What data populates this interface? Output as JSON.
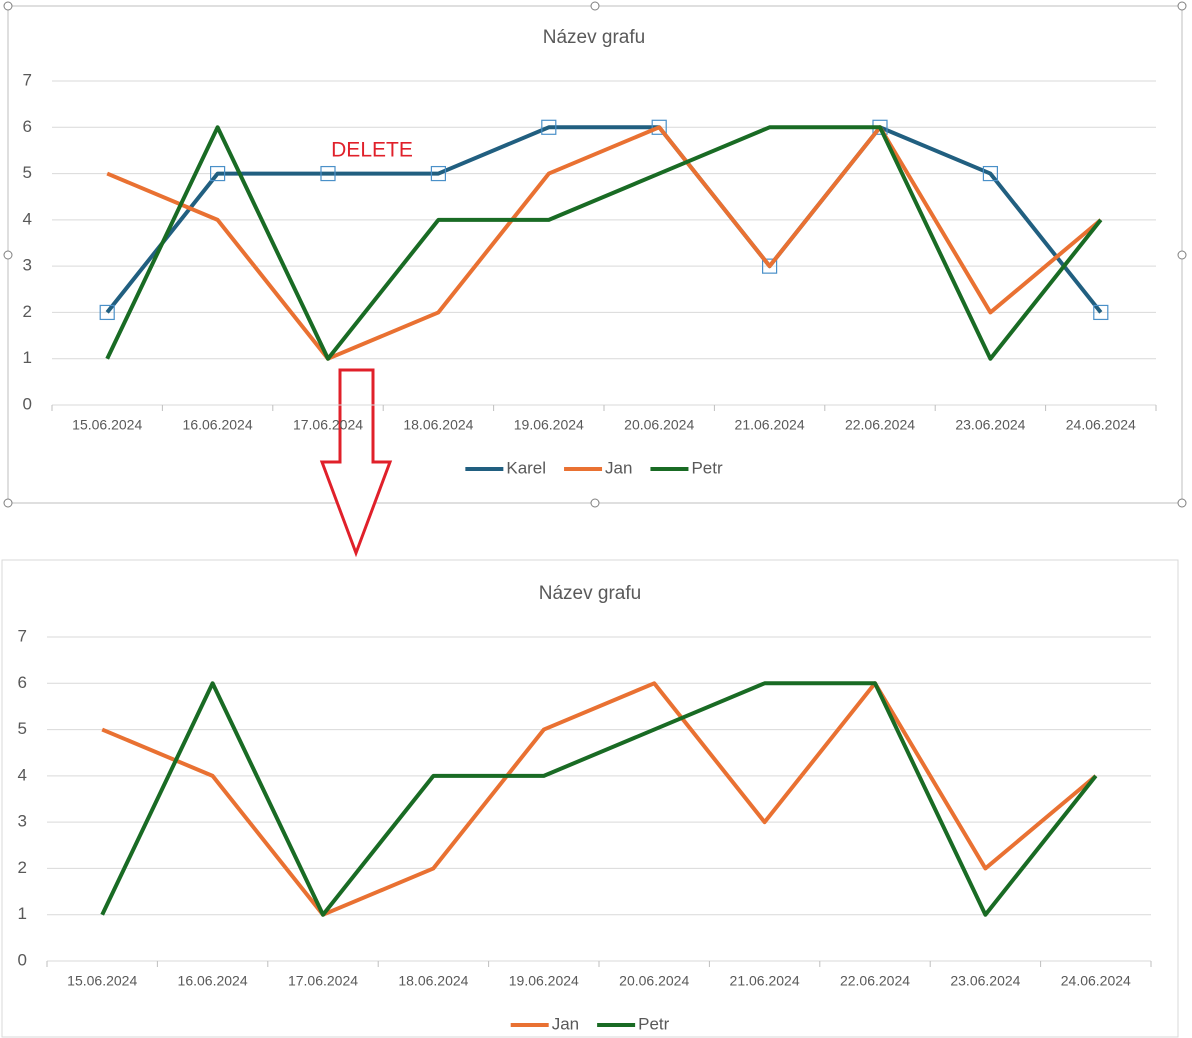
{
  "chart_data": [
    {
      "type": "line",
      "title": "Název grafu",
      "annotation": "DELETE",
      "categories": [
        "15.06.2024",
        "16.06.2024",
        "17.06.2024",
        "18.06.2024",
        "19.06.2024",
        "20.06.2024",
        "21.06.2024",
        "22.06.2024",
        "23.06.2024",
        "24.06.2024"
      ],
      "series": [
        {
          "name": "Karel",
          "color": "#215f80",
          "values": [
            2,
            5,
            5,
            5,
            6,
            6,
            3,
            6,
            5,
            2
          ],
          "selected": true
        },
        {
          "name": "Jan",
          "color": "#e97132",
          "values": [
            5,
            4,
            1,
            2,
            5,
            6,
            3,
            6,
            2,
            4
          ]
        },
        {
          "name": "Petr",
          "color": "#196b24",
          "values": [
            1,
            6,
            1,
            4,
            4,
            5,
            6,
            6,
            1,
            4
          ]
        }
      ],
      "ylim": [
        0,
        7
      ],
      "yticks": [
        0,
        1,
        2,
        3,
        4,
        5,
        6,
        7
      ],
      "grid": true,
      "legend": "bottom"
    },
    {
      "type": "line",
      "title": "Název grafu",
      "categories": [
        "15.06.2024",
        "16.06.2024",
        "17.06.2024",
        "18.06.2024",
        "19.06.2024",
        "20.06.2024",
        "21.06.2024",
        "22.06.2024",
        "23.06.2024",
        "24.06.2024"
      ],
      "series": [
        {
          "name": "Jan",
          "color": "#e97132",
          "values": [
            5,
            4,
            1,
            2,
            5,
            6,
            3,
            6,
            2,
            4
          ]
        },
        {
          "name": "Petr",
          "color": "#196b24",
          "values": [
            1,
            6,
            1,
            4,
            4,
            5,
            6,
            6,
            1,
            4
          ]
        }
      ],
      "ylim": [
        0,
        7
      ],
      "yticks": [
        0,
        1,
        2,
        3,
        4,
        5,
        6,
        7
      ],
      "grid": true,
      "legend": "bottom"
    }
  ]
}
